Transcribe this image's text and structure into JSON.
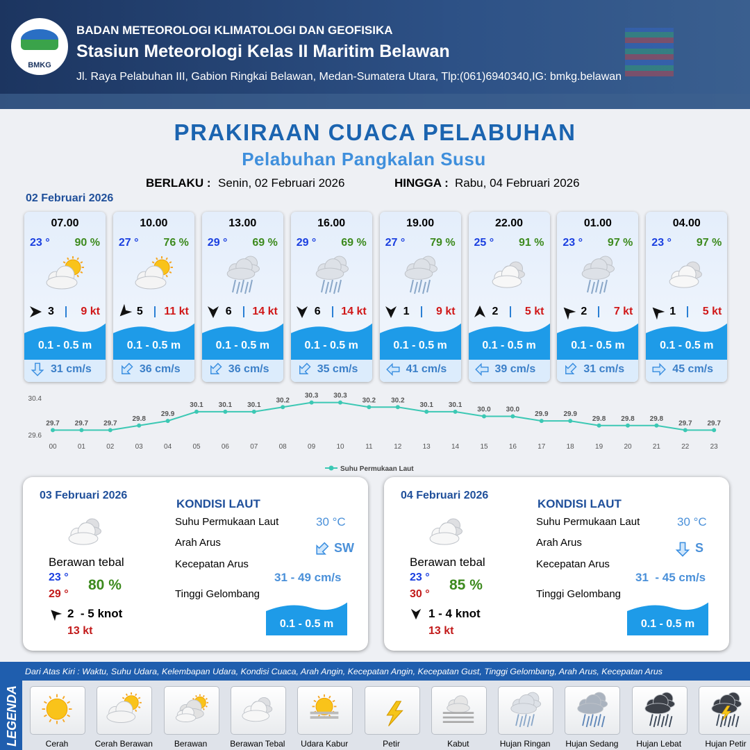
{
  "header": {
    "logo": "BMKG",
    "org": "BADAN METEOROLOGI KLIMATOLOGI DAN GEOFISIKA",
    "station": "Stasiun Meteorologi Kelas II Maritim Belawan",
    "address": "Jl. Raya Pelabuhan III, Gabion Ringkai Belawan, Medan-Sumatera Utara, Tlp:(061)6940340,IG: bmkg.belawan"
  },
  "title": "PRAKIRAAN CUACA PELABUHAN",
  "subtitle": "Pelabuhan Pangkalan Susu",
  "validity": {
    "from_label": "BERLAKU :",
    "from": "Senin, 02 Februari 2026",
    "to_label": "HINGGA :",
    "to": "Rabu, 04 Februari 2026"
  },
  "day1": {
    "date": "02 Februari 2026",
    "slots": [
      {
        "time": "07.00",
        "temp": "23 °",
        "humidity": "90 %",
        "weather": 1,
        "wind_dir": 90,
        "wind": "3",
        "gust": "9 kt",
        "wave": "0.1 - 0.5 m",
        "current_dir": 180,
        "current": "31 cm/s"
      },
      {
        "time": "10.00",
        "temp": "27 °",
        "humidity": "76 %",
        "weather": 1,
        "wind_dir": 225,
        "wind": "5",
        "gust": "11 kt",
        "wave": "0.1 - 0.5 m",
        "current_dir": 225,
        "current": "36 cm/s"
      },
      {
        "time": "13.00",
        "temp": "29 °",
        "humidity": "69 %",
        "weather": 7,
        "wind_dir": 180,
        "wind": "6",
        "gust": "14 kt",
        "wave": "0.1 - 0.5 m",
        "current_dir": 225,
        "current": "36 cm/s"
      },
      {
        "time": "16.00",
        "temp": "29 °",
        "humidity": "69 %",
        "weather": 7,
        "wind_dir": 180,
        "wind": "6",
        "gust": "14 kt",
        "wave": "0.1 - 0.5 m",
        "current_dir": 225,
        "current": "35 cm/s"
      },
      {
        "time": "19.00",
        "temp": "27 °",
        "humidity": "79 %",
        "weather": 7,
        "wind_dir": 180,
        "wind": "1",
        "gust": "9 kt",
        "wave": "0.1 - 0.5 m",
        "current_dir": 270,
        "current": "41 cm/s"
      },
      {
        "time": "22.00",
        "temp": "25 °",
        "humidity": "91 %",
        "weather": 3,
        "wind_dir": 0,
        "wind": "2",
        "gust": "5 kt",
        "wave": "0.1 - 0.5 m",
        "current_dir": 270,
        "current": "39 cm/s"
      },
      {
        "time": "01.00",
        "temp": "23 °",
        "humidity": "97 %",
        "weather": 7,
        "wind_dir": 315,
        "wind": "2",
        "gust": "7 kt",
        "wave": "0.1 - 0.5 m",
        "current_dir": 225,
        "current": "31 cm/s"
      },
      {
        "time": "04.00",
        "temp": "23 °",
        "humidity": "97 %",
        "weather": 3,
        "wind_dir": 315,
        "wind": "1",
        "gust": "5 kt",
        "wave": "0.1 - 0.5 m",
        "current_dir": 90,
        "current": "45 cm/s"
      }
    ]
  },
  "chart_data": {
    "type": "line",
    "categories": [
      "00",
      "01",
      "02",
      "03",
      "04",
      "05",
      "06",
      "07",
      "08",
      "09",
      "10",
      "11",
      "12",
      "13",
      "14",
      "15",
      "16",
      "17",
      "18",
      "19",
      "20",
      "21",
      "22",
      "23"
    ],
    "series": [
      {
        "name": "Suhu Permukaan Laut",
        "color": "#3cc8b4",
        "values": [
          29.7,
          29.7,
          29.7,
          29.8,
          29.9,
          30.1,
          30.1,
          30.1,
          30.2,
          30.3,
          30.3,
          30.2,
          30.2,
          30.1,
          30.1,
          30.0,
          30.0,
          29.9,
          29.9,
          29.8,
          29.8,
          29.8,
          29.7,
          29.7
        ],
        "value_labels": [
          "29.7",
          "29.7",
          "29.7",
          "29.8",
          "29.9",
          "30.1",
          "30.1",
          "30.1",
          "30.2",
          "30.3",
          "30.3",
          "30.2",
          "30.2",
          "30.1",
          "30.1",
          "30.0",
          "30.0",
          "29.9",
          "29.9",
          "29.8",
          "29.8",
          "29.8",
          "29.7",
          "29.7"
        ]
      }
    ],
    "ylim": [
      29.6,
      30.4
    ],
    "yticks": [
      29.6,
      30.4
    ],
    "grid": false
  },
  "days": [
    {
      "date": "03 Februari 2026",
      "weather": 3,
      "weather_text": "Berawan tebal",
      "tmin": "23 °",
      "tmax": "29 °",
      "humidity": "80 %",
      "wind_dir": 315,
      "wind": "2  - 5 knot",
      "gust": "13 kt",
      "heading": "KONDISI LAUT",
      "labels": [
        "Suhu Permukaan Laut",
        "Arah Arus",
        "Kecepatan Arus",
        "Tinggi Gelombang"
      ],
      "sst": "30 °C",
      "current_dir": 225,
      "current_dir_text": "SW",
      "current": "31 - 49 cm/s",
      "wave": "0.1 - 0.5 m"
    },
    {
      "date": "04 Februari 2026",
      "weather": 3,
      "weather_text": "Berawan tebal",
      "tmin": "23 °",
      "tmax": "30 °",
      "humidity": "85 %",
      "wind_dir": 180,
      "wind": "1 - 4 knot",
      "gust": "13 kt",
      "heading": "KONDISI LAUT",
      "labels": [
        "Suhu Permukaan Laut",
        "Arah Arus",
        "Kecepatan Arus",
        "Tinggi Gelombang"
      ],
      "sst": "30 °C",
      "current_dir": 180,
      "current_dir_text": "S",
      "current": "31  - 45 cm/s",
      "wave": "0.1 - 0.5 m"
    }
  ],
  "legend": {
    "label": "LEGENDA",
    "description": "Dari Atas Kiri : Waktu, Suhu Udara, Kelembapan Udara, Kondisi Cuaca, Arah Angin, Kecepatan Angin, Kecepatan Gust, Tinggi Gelombang, Arah Arus, Kecepatan Arus",
    "items": [
      "Cerah",
      "Cerah Berawan",
      "Berawan",
      "Berawan Tebal",
      "Udara Kabur",
      "Petir",
      "Kabut",
      "Hujan Ringan",
      "Hujan Sedang",
      "Hujan Lebat",
      "Hujan Petir"
    ]
  }
}
